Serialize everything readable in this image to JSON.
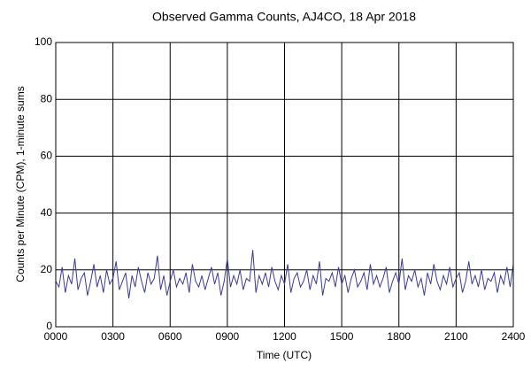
{
  "chart_data": {
    "type": "line",
    "title": "Observed Gamma Counts, AJ4CO, 18 Apr 2018",
    "x_label": "Time (UTC)",
    "y_label": "Counts per Minute (CPM), 1-minute sums",
    "x": [
      0,
      10,
      20,
      30,
      40,
      50,
      60,
      70,
      80,
      90,
      100,
      110,
      120,
      130,
      140,
      150,
      160,
      170,
      180,
      190,
      200,
      210,
      220,
      230,
      240,
      250,
      260,
      270,
      280,
      290,
      300,
      310,
      320,
      330,
      340,
      350,
      360,
      370,
      380,
      390,
      400,
      410,
      420,
      430,
      440,
      450,
      460,
      470,
      480,
      490,
      500,
      510,
      520,
      530,
      540,
      550,
      560,
      570,
      580,
      590,
      600,
      610,
      620,
      630,
      640,
      650,
      660,
      670,
      680,
      690,
      700,
      710,
      720,
      730,
      740,
      750,
      760,
      770,
      780,
      790,
      800,
      810,
      820,
      830,
      840,
      850,
      860,
      870,
      880,
      890,
      900,
      910,
      920,
      930,
      940,
      950,
      960,
      970,
      980,
      990,
      1000,
      1010,
      1020,
      1030,
      1040,
      1050,
      1060,
      1070,
      1080,
      1090,
      1100,
      1110,
      1120,
      1130,
      1140,
      1150,
      1160,
      1170,
      1180,
      1190,
      1200,
      1210,
      1220,
      1230,
      1240,
      1250,
      1260,
      1270,
      1280,
      1290,
      1300,
      1310,
      1320,
      1330,
      1340,
      1350,
      1360,
      1370,
      1380,
      1390,
      1400,
      1410,
      1420,
      1430,
      1440
    ],
    "series": [
      {
        "color": "#3a3a9a",
        "values": [
          16,
          14,
          21,
          12,
          18,
          15,
          24,
          13,
          17,
          19,
          11,
          16,
          22,
          14,
          18,
          12,
          20,
          15,
          17,
          23,
          13,
          16,
          19,
          10,
          18,
          14,
          21,
          16,
          12,
          19,
          15,
          17,
          25,
          13,
          18,
          11,
          16,
          20,
          14,
          17,
          15,
          19,
          12,
          22,
          16,
          14,
          18,
          13,
          17,
          21,
          15,
          19,
          11,
          16,
          24,
          14,
          18,
          15,
          20,
          13,
          17,
          16,
          27,
          12,
          18,
          15,
          19,
          14,
          21,
          16,
          13,
          18,
          15,
          22,
          12,
          17,
          19,
          14,
          16,
          20,
          13,
          18,
          15,
          23,
          11,
          17,
          16,
          19,
          14,
          21,
          15,
          18,
          12,
          17,
          20,
          14,
          16,
          19,
          13,
          22,
          15,
          18,
          14,
          17,
          21,
          12,
          16,
          19,
          15,
          24,
          13,
          18,
          16,
          20,
          14,
          17,
          11,
          19,
          15,
          22,
          16,
          13,
          18,
          15,
          21,
          14,
          17,
          19,
          12,
          16,
          23,
          15,
          18,
          14,
          20,
          13,
          17,
          16,
          19,
          12,
          18,
          15,
          21,
          14,
          22
        ]
      }
    ],
    "xlim": [
      0,
      1440
    ],
    "xticks": [
      {
        "value": 0,
        "label": "0000"
      },
      {
        "value": 180,
        "label": "0300"
      },
      {
        "value": 360,
        "label": "0600"
      },
      {
        "value": 540,
        "label": "0900"
      },
      {
        "value": 720,
        "label": "1200"
      },
      {
        "value": 900,
        "label": "1500"
      },
      {
        "value": 1080,
        "label": "1800"
      },
      {
        "value": 1260,
        "label": "2100"
      },
      {
        "value": 1440,
        "label": "2400"
      }
    ],
    "ylim": [
      0,
      100
    ],
    "yticks": [
      0,
      20,
      40,
      60,
      80,
      100
    ],
    "grid": true
  }
}
